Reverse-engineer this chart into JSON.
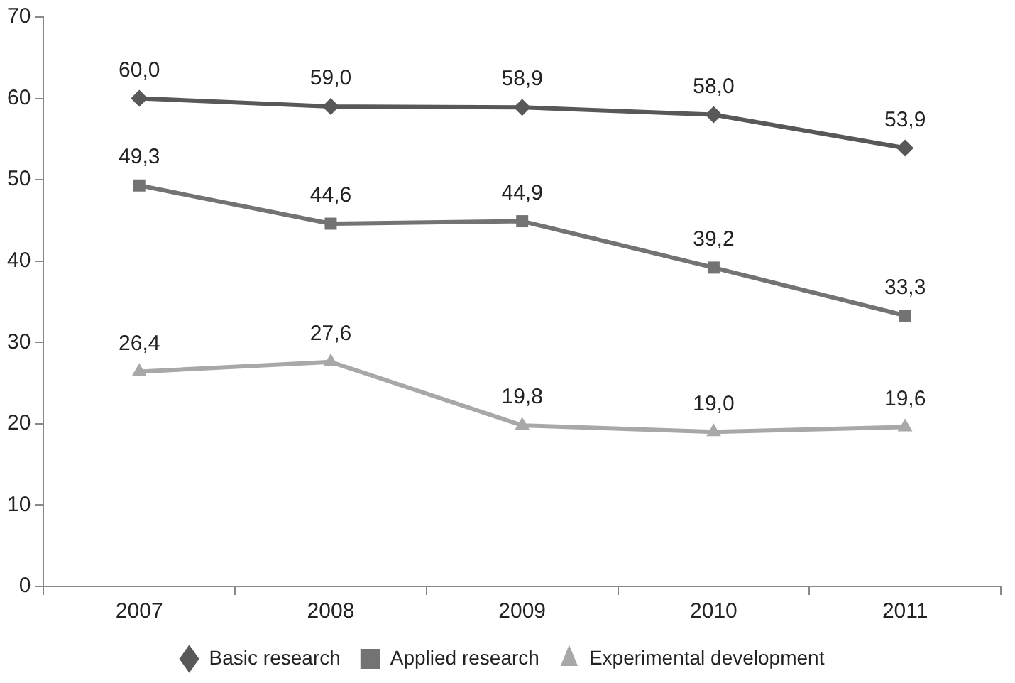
{
  "chart_data": {
    "type": "line",
    "categories": [
      "2007",
      "2008",
      "2009",
      "2010",
      "2011"
    ],
    "series": [
      {
        "name": "Basic research",
        "color": "#585858",
        "marker": "diamond",
        "values": [
          60.0,
          59.0,
          58.9,
          58.0,
          53.9
        ],
        "value_labels": [
          "60,0",
          "59,0",
          "58,9",
          "58,0",
          "53,9"
        ]
      },
      {
        "name": "Applied research",
        "color": "#737373",
        "marker": "square",
        "values": [
          49.3,
          44.6,
          44.9,
          39.2,
          33.3
        ],
        "value_labels": [
          "49,3",
          "44,6",
          "44,9",
          "39,2",
          "33,3"
        ]
      },
      {
        "name": "Experimental development",
        "color": "#a8a8a8",
        "marker": "triangle",
        "values": [
          26.4,
          27.6,
          19.8,
          19.0,
          19.6
        ],
        "value_labels": [
          "26,4",
          "27,6",
          "19,8",
          "19,0",
          "19,6"
        ]
      }
    ],
    "ylim": [
      0,
      70
    ],
    "yticks": [
      0,
      10,
      20,
      30,
      40,
      50,
      60,
      70
    ],
    "grid": false,
    "legend": "bottom",
    "line_style": "solid"
  }
}
